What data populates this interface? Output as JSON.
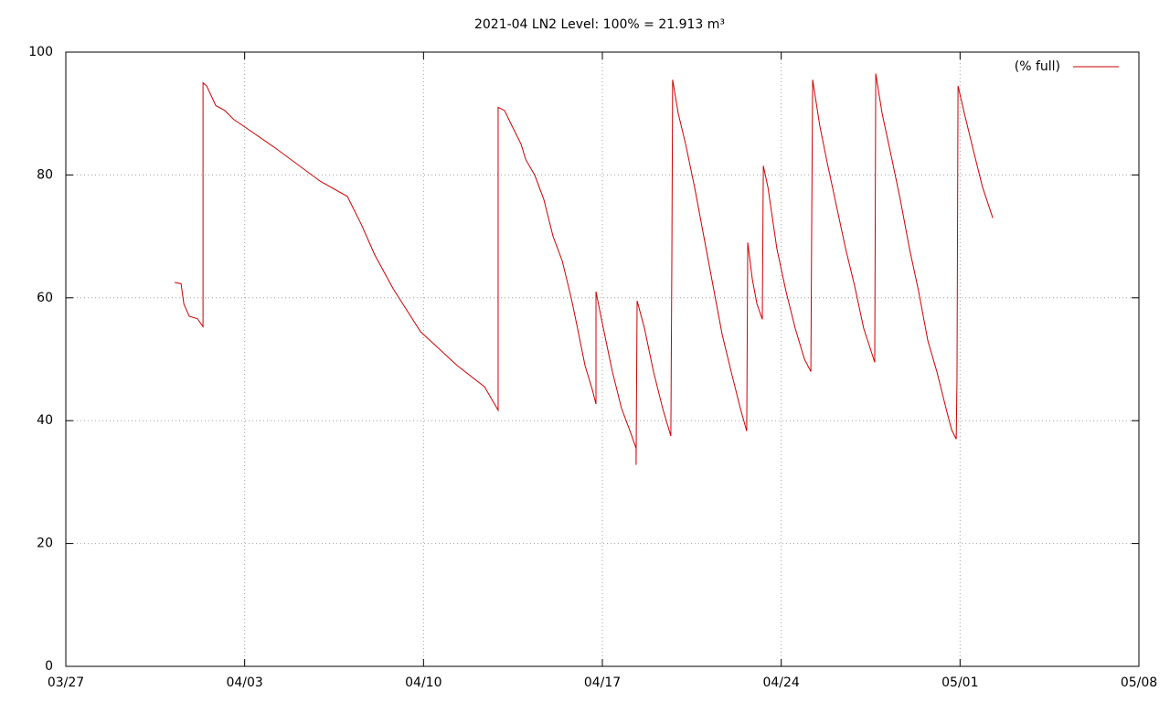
{
  "chart_data": {
    "type": "line",
    "title": "2021-04 LN2 Level: 100% = 21.913 m³",
    "xlim": [
      0,
      42
    ],
    "xticks": [
      {
        "value": 0,
        "label": "03/27"
      },
      {
        "value": 7,
        "label": "04/03"
      },
      {
        "value": 14,
        "label": "04/10"
      },
      {
        "value": 21,
        "label": "04/17"
      },
      {
        "value": 28,
        "label": "04/24"
      },
      {
        "value": 35,
        "label": "05/01"
      },
      {
        "value": 42,
        "label": "05/08"
      }
    ],
    "ylim": [
      0,
      100
    ],
    "yticks": [
      0,
      20,
      40,
      60,
      80,
      100
    ],
    "grid": true,
    "legend": "top-right",
    "series": [
      {
        "name": "(% full)",
        "color": "#cc0000",
        "x": [
          4.26,
          4.51,
          4.62,
          4.83,
          5.15,
          5.37,
          5.37,
          5.51,
          5.87,
          6.22,
          6.58,
          6.94,
          8.16,
          9.95,
          11.02,
          11.56,
          12.09,
          12.81,
          13.88,
          15.31,
          16.39,
          16.92,
          16.92,
          17.17,
          17.46,
          17.82,
          18.0,
          18.35,
          18.71,
          19.07,
          19.43,
          19.78,
          20.03,
          20.32,
          20.61,
          20.75,
          20.75,
          21.04,
          21.39,
          21.75,
          22.11,
          22.32,
          22.32,
          22.36,
          22.65,
          23.0,
          23.36,
          23.68,
          23.72,
          23.75,
          23.97,
          24.26,
          24.61,
          24.97,
          25.33,
          25.69,
          26.04,
          26.4,
          26.65,
          26.69,
          26.87,
          27.05,
          27.26,
          27.3,
          27.48,
          27.83,
          28.19,
          28.55,
          28.91,
          29.16,
          29.19,
          29.23,
          29.51,
          29.8,
          30.16,
          30.52,
          30.87,
          31.23,
          31.66,
          31.7,
          31.95,
          32.31,
          32.66,
          33.02,
          33.38,
          33.74,
          34.09,
          34.45,
          34.67,
          34.85,
          34.88,
          34.92,
          35.17,
          35.52,
          35.88,
          36.28
        ],
        "values": [
          62.5,
          62.3,
          59,
          57,
          56.6,
          55.3,
          95,
          94.5,
          91.3,
          90.5,
          89,
          88,
          84.5,
          79,
          76.5,
          72,
          67,
          61.5,
          54.5,
          49,
          45.5,
          41.7,
          91,
          90.5,
          88,
          85,
          82.5,
          80,
          76,
          70,
          66,
          60,
          55,
          49,
          45,
          42.7,
          61,
          55,
          48,
          42,
          38,
          35.5,
          32.8,
          59.5,
          55,
          48,
          42,
          37.5,
          67,
          95.5,
          90,
          85,
          78,
          70,
          62,
          54,
          48,
          42,
          38.3,
          69,
          63,
          59,
          56.5,
          81.5,
          78,
          68,
          61,
          55,
          50,
          48,
          70,
          95.5,
          88,
          82,
          75,
          68,
          62,
          55,
          49.5,
          96.5,
          90,
          83,
          76,
          68,
          61,
          53,
          48,
          42,
          38.5,
          37,
          47,
          94.5,
          90,
          84,
          78,
          73
        ]
      }
    ]
  }
}
